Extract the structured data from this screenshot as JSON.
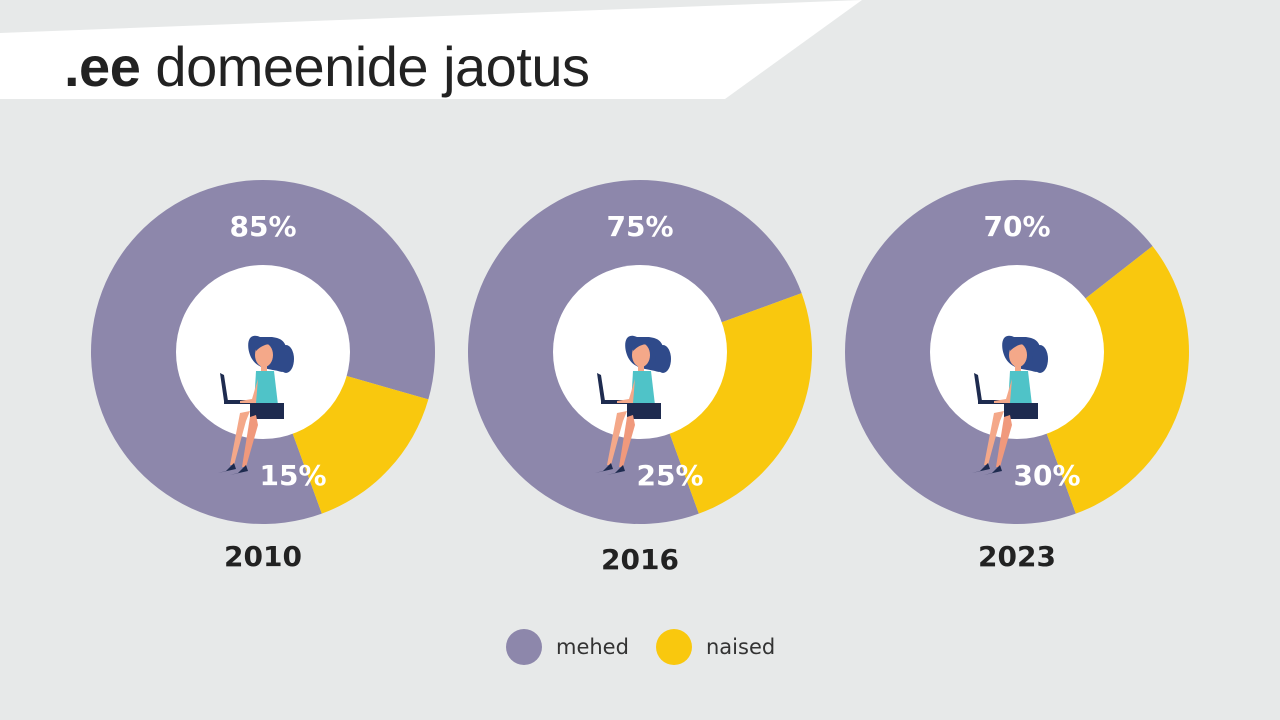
{
  "title": {
    "prefix": ".ee",
    "rest": " domeenide jaotus"
  },
  "colors": {
    "mehed": "#8d87ab",
    "naised": "#f9c80e",
    "background": "#e7e9e9",
    "hole": "#ffffff"
  },
  "legend": [
    {
      "label": "mehed",
      "color": "#8d87ab"
    },
    {
      "label": "naised",
      "color": "#f9c80e"
    }
  ],
  "chart_data": {
    "type": "donut",
    "series_names": [
      "mehed",
      "naised"
    ],
    "charts": [
      {
        "year": "2010",
        "mehed": 85,
        "naised": 15,
        "mehed_label": "85%",
        "naised_label": "15%"
      },
      {
        "year": "2016",
        "mehed": 75,
        "naised": 25,
        "mehed_label": "75%",
        "naised_label": "25%"
      },
      {
        "year": "2023",
        "mehed": 70,
        "naised": 30,
        "mehed_label": "70%",
        "naised_label": "30%"
      }
    ]
  }
}
